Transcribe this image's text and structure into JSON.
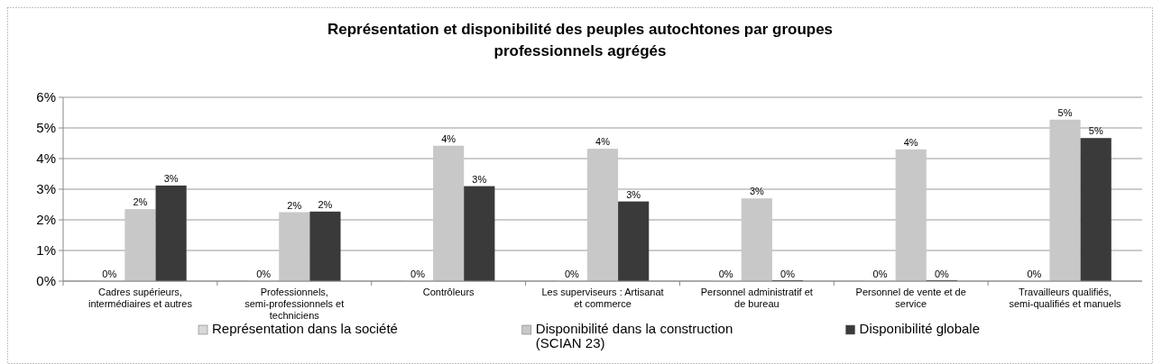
{
  "chart_data": {
    "type": "bar",
    "title": "Représentation et disponibilité des peuples autochtones par groupes professionnels agrégés",
    "categories": [
      "Cadres supérieurs, intermédiaires et autres",
      "Professionnels, semi-professionnels et techniciens",
      "Contrôleurs",
      "Les superviseurs : Artisanat et commerce",
      "Personnel administratif et de bureau",
      "Personnel de vente et de service",
      "Travailleurs qualifiés, semi-qualifiés et manuels"
    ],
    "series": [
      {
        "name": "Représentation dans la société",
        "color": "#d9d9d9",
        "values": [
          0,
          0,
          0,
          0,
          0,
          0,
          0
        ],
        "value_labels": [
          "0%",
          "0%",
          "0%",
          "0%",
          "0%",
          "0%",
          "0%"
        ]
      },
      {
        "name": "Disponibilité dans la construction (SCIAN 23)",
        "color": "#c8c8c8",
        "values": [
          2.35,
          2.25,
          4.42,
          4.32,
          2.7,
          4.3,
          5.27
        ],
        "value_labels": [
          "2%",
          "2%",
          "4%",
          "4%",
          "3%",
          "4%",
          "5%"
        ]
      },
      {
        "name": "Disponibilité globale",
        "color": "#3a3a3a",
        "values": [
          3.12,
          2.27,
          3.1,
          2.6,
          0,
          0,
          4.67
        ],
        "value_labels": [
          "3%",
          "2%",
          "3%",
          "3%",
          "0%",
          "0%",
          "5%"
        ]
      }
    ],
    "ylim": [
      0,
      6
    ],
    "yticks": [
      {
        "value": 0,
        "label": "0%"
      },
      {
        "value": 1,
        "label": "1%"
      },
      {
        "value": 2,
        "label": "2%"
      },
      {
        "value": 3,
        "label": "3%"
      },
      {
        "value": 4,
        "label": "4%"
      },
      {
        "value": 5,
        "label": "5%"
      },
      {
        "value": 6,
        "label": "6%"
      }
    ],
    "grid": "y",
    "legend": "bottom"
  }
}
